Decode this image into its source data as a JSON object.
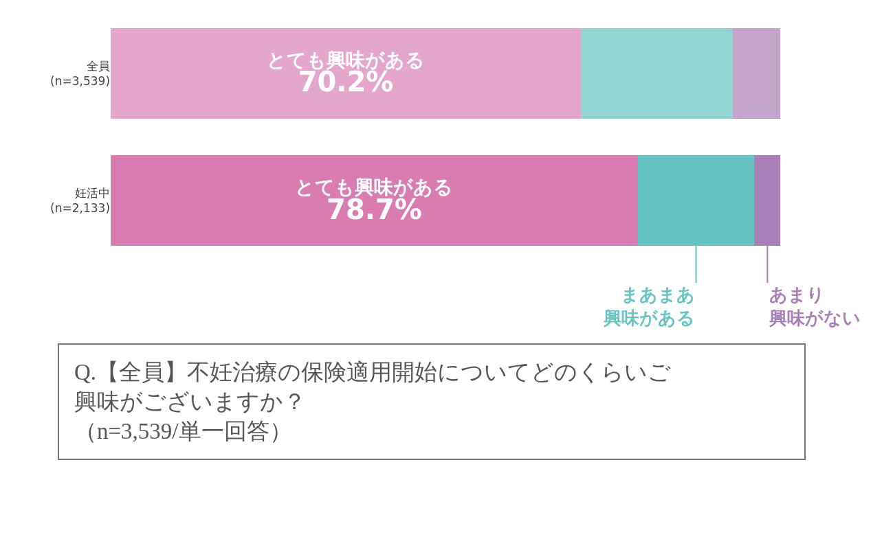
{
  "chart_data": {
    "type": "bar",
    "orientation": "horizontal",
    "stacked": true,
    "categories": [
      "全員\n(n=3,539)",
      "妊活中\n(n=2,133)"
    ],
    "xlim": [
      0,
      100
    ],
    "tick_labels": "y",
    "legend": false,
    "series": [
      {
        "name": "とても興味がある",
        "colors": [
          "#e5a6cb",
          "#d97cb1"
        ],
        "values": [
          70.2,
          78.7
        ],
        "value_labels": [
          "70.2%",
          "78.7%"
        ]
      },
      {
        "name": "まあまあ興味がある",
        "colors": [
          "#92d5d3",
          "#68c4c3"
        ],
        "values": [
          22.7,
          17.4
        ]
      },
      {
        "name": "あまり興味がない",
        "colors": [
          "#c5a5cb",
          "#a97fb6"
        ],
        "values": [
          7.1,
          3.9
        ]
      }
    ],
    "annotations": [
      "Q.【全員】不妊治療の保険適用開始についてどのくらいご興味がございますか？（n=3,539/単一回答）"
    ]
  }
}
